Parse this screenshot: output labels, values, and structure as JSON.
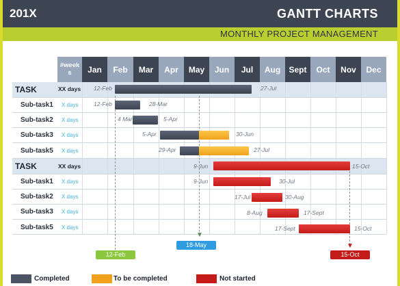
{
  "header": {
    "year": "201X",
    "title": "GANTT CHARTS",
    "subtitle": "MONTHLY PROJECT MANAGEMENT"
  },
  "weeks_label": "#week s",
  "months": [
    "Jan",
    "Feb",
    "Mar",
    "Apr",
    "May",
    "Jun",
    "Jul",
    "Aug",
    "Sept",
    "Oct",
    "Nov",
    "Dec"
  ],
  "groups": [
    {
      "task": {
        "label": "TASK",
        "duration": "XX days",
        "start": "12-Feb",
        "end": "27-Jul",
        "status": "completed"
      },
      "subtasks": [
        {
          "label": "Sub-task1",
          "duration": "X days",
          "start": "12-Feb",
          "end": "28-Mar",
          "status": "completed"
        },
        {
          "label": "Sub-task2",
          "duration": "X days",
          "start": "4 Mar",
          "end": "5-Apr",
          "status": "completed"
        },
        {
          "label": "Sub-task3",
          "duration": "X days",
          "start": "5-Apr",
          "end": "30-Jun",
          "status": "completed+to_be_completed"
        },
        {
          "label": "Sub-task5",
          "duration": "X days",
          "start": "29-Apr",
          "end": "27-Jul",
          "status": "completed+to_be_completed"
        }
      ]
    },
    {
      "task": {
        "label": "TASK",
        "duration": "XX days",
        "start": "9-Jun",
        "end": "15-Oct",
        "status": "not_started"
      },
      "subtasks": [
        {
          "label": "Sub-task1",
          "duration": "X days",
          "start": "9-Jun",
          "end": "30-Jul",
          "status": "not_started"
        },
        {
          "label": "Sub-task2",
          "duration": "X days",
          "start": "17-Jul",
          "end": "30-Aug",
          "status": "not_started"
        },
        {
          "label": "Sub-task3",
          "duration": "X days",
          "start": "8-Aug",
          "end": "17-Sept",
          "status": "not_started"
        },
        {
          "label": "Sub-task5",
          "duration": "X days",
          "start": "17-Sept",
          "end": "15-Oct",
          "status": "not_started"
        }
      ]
    }
  ],
  "markers": {
    "start": "12-Feb",
    "today": "18-May",
    "deadline": "15-Oct"
  },
  "legend": {
    "completed": "Completed",
    "to_be_completed": "To be completed",
    "not_started": "Not started"
  },
  "colors": {
    "dark": "#3d4452",
    "light": "#98a7bb",
    "accent": "#b9cf31",
    "completed": "#3d4452",
    "to_be_completed": "#f0a21c",
    "not_started": "#c41a1a",
    "marker_start": "#8dc63f",
    "marker_today": "#2f9be0"
  }
}
